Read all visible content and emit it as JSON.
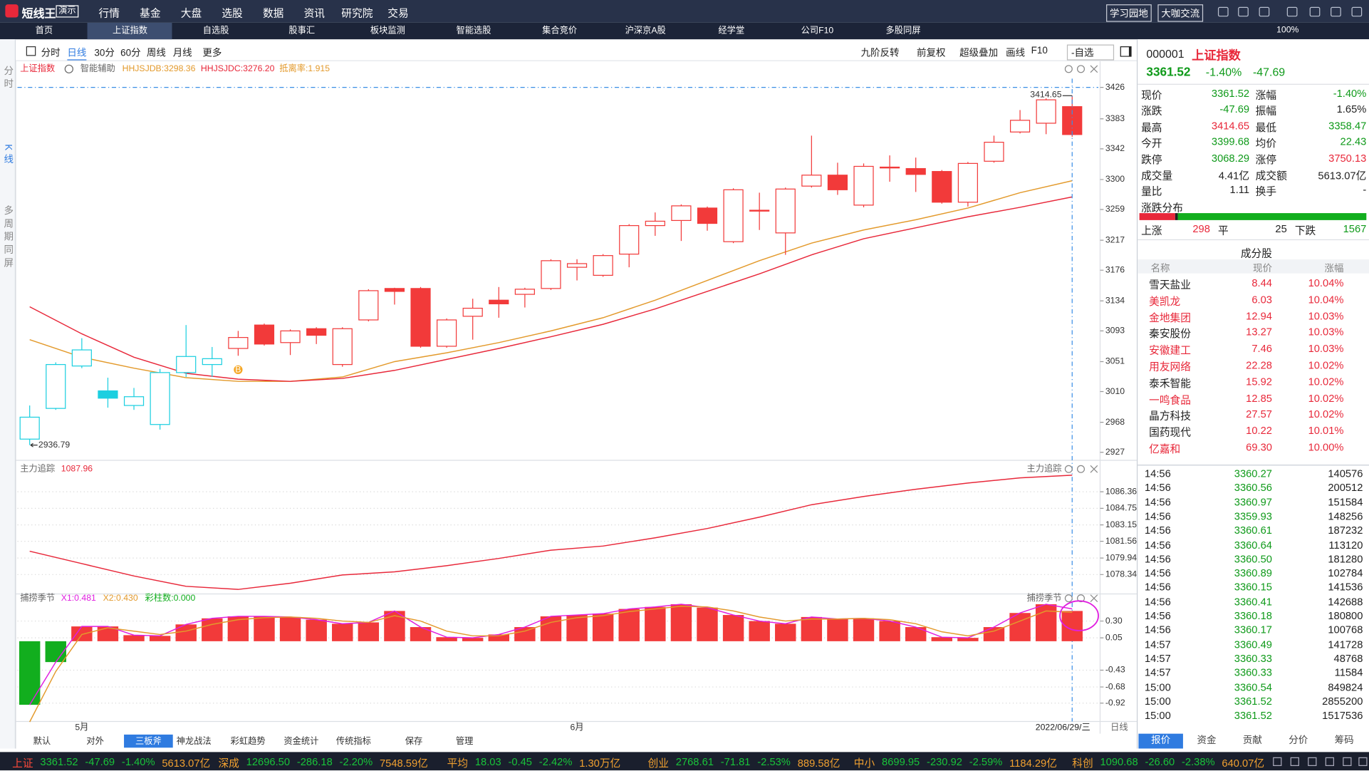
{
  "app": {
    "logo": "短线王",
    "badge": "演示",
    "menu": [
      "行情",
      "基金",
      "大盘",
      "选股",
      "数据",
      "资讯",
      "研究院",
      "交易"
    ],
    "buttons": [
      "学习园地",
      "大咖交流"
    ],
    "tabs": [
      "首页",
      "上证指数",
      "自选股",
      "股事汇",
      "板块监测",
      "智能选股",
      "集合竞价",
      "沪深京A股",
      "经学堂",
      "公司F10",
      "多股同屏"
    ],
    "zoom": "100%",
    "side_tabs": [
      "分时",
      "K线",
      "多周期同屏"
    ],
    "periods": [
      "分时",
      "日线",
      "30分",
      "60分",
      "周线",
      "月线",
      "更多"
    ],
    "tools": [
      "九阶反转",
      "前复权",
      "超级叠加",
      "画线",
      "F10",
      "-自选"
    ],
    "date": "2022/06/29/三",
    "period_label": "日线",
    "indicator_tabs": [
      "默认",
      "对外",
      "三板斧",
      "神龙战法",
      "彩虹趋势",
      "资金统计",
      "传统指标",
      "保存",
      "管理"
    ]
  },
  "chart_data": [
    {
      "type": "candlestick",
      "title": "上证指数",
      "subtitle": "智能辅助",
      "annotation": "抵离率:1.915",
      "open": [
        2945,
        2987,
        3045,
        3011,
        2991,
        2965,
        3036,
        3047,
        3069,
        3101,
        3077,
        3096,
        3047,
        3108,
        3151,
        3151,
        3072,
        3113,
        3135,
        3143,
        3151,
        3180,
        3169,
        3198,
        3237,
        3244,
        3261,
        3215,
        3257,
        3227,
        3291,
        3306,
        3265,
        3316,
        3315,
        3311,
        3269,
        3325,
        3365,
        3377,
        3399.68
      ],
      "high": [
        2991,
        3050,
        3083,
        3029,
        3015,
        3041,
        3101,
        3071,
        3093,
        3103,
        3095,
        3098,
        3098,
        3150,
        3152,
        3153,
        3110,
        3137,
        3153,
        3152,
        3191,
        3191,
        3198,
        3239,
        3255,
        3266,
        3263,
        3288,
        3282,
        3289,
        3360,
        3323,
        3322,
        3333,
        3330,
        3313,
        3324,
        3360,
        3395,
        3411,
        3414.65
      ],
      "low": [
        2936.79,
        2985,
        3042,
        2988,
        2985,
        2958,
        3030,
        3030,
        3059,
        3073,
        3060,
        3075,
        3044,
        3106,
        3129,
        3070,
        3070,
        3081,
        3111,
        3125,
        3149,
        3162,
        3167,
        3180,
        3223,
        3216,
        3230,
        3213,
        3231,
        3197,
        3289,
        3279,
        3262,
        3297,
        3283,
        3267,
        3263,
        3323,
        3363,
        3362,
        3358.47
      ],
      "close": [
        2975,
        3047,
        3067,
        3001,
        3003,
        3036,
        3058,
        3055,
        3084,
        3075,
        3093,
        3087,
        3096,
        3148,
        3147,
        3072,
        3108,
        3124,
        3130,
        3150,
        3189,
        3185,
        3196,
        3237,
        3243,
        3264,
        3240,
        3286,
        3258,
        3287,
        3306,
        3286,
        3318,
        3317,
        3307,
        3269,
        3322,
        3351,
        3381,
        3409,
        3361.52
      ],
      "colors": [
        "#1ccfe0",
        "#1ccfe0",
        "#1ccfe0",
        "#1ccfe0",
        "#1ccfe0",
        "#1ccfe0",
        "#1ccfe0",
        "#1ccfe0",
        "#f23a3a",
        "#f23a3a",
        "#f23a3a",
        "#f23a3a",
        "#f23a3a",
        "#f23a3a",
        "#f23a3a",
        "#f23a3a",
        "#f23a3a",
        "#f23a3a",
        "#f23a3a",
        "#f23a3a",
        "#f23a3a",
        "#f23a3a",
        "#f23a3a",
        "#f23a3a",
        "#f23a3a",
        "#f23a3a",
        "#f23a3a",
        "#f23a3a",
        "#f23a3a",
        "#f23a3a",
        "#f23a3a",
        "#f23a3a",
        "#f23a3a",
        "#f23a3a",
        "#f23a3a",
        "#f23a3a",
        "#f23a3a",
        "#f23a3a",
        "#f23a3a",
        "#f23a3a",
        "#f23a3a"
      ],
      "series": [
        {
          "name": "HHJSJDB:3298.36",
          "color": "#e39a2c",
          "x": [
            0,
            2,
            4,
            6,
            8,
            10,
            12,
            14,
            16,
            18,
            20,
            22,
            24,
            26,
            28,
            30,
            32,
            34,
            36,
            38,
            40
          ],
          "values": [
            3081,
            3057,
            3042,
            3029,
            3024,
            3024,
            3030,
            3051,
            3063,
            3077,
            3093,
            3111,
            3135,
            3162,
            3189,
            3213,
            3231,
            3245,
            3261,
            3282,
            3298.36
          ]
        },
        {
          "name": "HHJSJDC:3276.20",
          "color": "#e8283a",
          "x": [
            0,
            2,
            4,
            6,
            8,
            10,
            12,
            14,
            16,
            18,
            20,
            22,
            24,
            26,
            28,
            30,
            32,
            34,
            36,
            38,
            40
          ],
          "values": [
            3126,
            3089,
            3057,
            3035,
            3027,
            3024,
            3028,
            3039,
            3054,
            3069,
            3085,
            3102,
            3123,
            3147,
            3171,
            3197,
            3219,
            3234,
            3249,
            3262,
            3276.2
          ]
        }
      ],
      "high_label": "3414.65",
      "low_label": "2936.79",
      "markers": [
        {
          "index": 8,
          "label": "B"
        }
      ],
      "xticks": [
        {
          "value": 2,
          "label": "5月"
        },
        {
          "value": 21,
          "label": "6月"
        }
      ],
      "ylim": [
        2922,
        3438
      ],
      "yticks": [
        3426,
        3383,
        3342,
        3300,
        3259,
        3217,
        3176,
        3134,
        3093,
        3051,
        3010,
        2968,
        2927
      ],
      "grid": false
    },
    {
      "type": "line",
      "title": "主力追踪",
      "title_right": "主力追踪",
      "value_label": "1087.96",
      "color": "#e8283a",
      "x": [
        0,
        2,
        4,
        6,
        8,
        10,
        12,
        14,
        16,
        18,
        20,
        22,
        24,
        26,
        28,
        30,
        32,
        34,
        36,
        38,
        40
      ],
      "values": [
        1080.6,
        1079.4,
        1078.2,
        1077.2,
        1076.9,
        1077.5,
        1078.3,
        1078.6,
        1079.2,
        1079.9,
        1080.7,
        1081.1,
        1081.9,
        1082.8,
        1083.9,
        1085.1,
        1085.9,
        1086.6,
        1087.2,
        1087.7,
        1087.96
      ],
      "ylim": [
        1076.8,
        1089.15
      ],
      "yticks": [
        1086.36,
        1084.75,
        1083.15,
        1081.56,
        1079.94,
        1078.34
      ],
      "grid": true
    },
    {
      "type": "bar",
      "title": "捕捞季节",
      "title_right": "捕捞季节",
      "bar_label": "彩柱数:0.000",
      "color": "#f23a3a",
      "negative_color": "#12ae1e",
      "values": [
        -0.945,
        -0.31,
        0.22,
        0.22,
        0.09,
        0.08,
        0.25,
        0.34,
        0.37,
        0.37,
        0.36,
        0.32,
        0.26,
        0.28,
        0.45,
        0.21,
        0.06,
        0.05,
        0.1,
        0.21,
        0.37,
        0.39,
        0.41,
        0.48,
        0.51,
        0.55,
        0.5,
        0.39,
        0.3,
        0.26,
        0.36,
        0.33,
        0.34,
        0.3,
        0.21,
        0.06,
        0.05,
        0.21,
        0.42,
        0.55,
        0.45
      ],
      "series": [
        {
          "name": "X1:0.481",
          "color": "#e01ee0",
          "values": [
            -0.945,
            -0.31,
            0.22,
            0.22,
            0.09,
            0.08,
            0.25,
            0.34,
            0.37,
            0.37,
            0.36,
            0.32,
            0.26,
            0.28,
            0.45,
            0.21,
            0.06,
            0.05,
            0.1,
            0.21,
            0.37,
            0.39,
            0.41,
            0.48,
            0.51,
            0.55,
            0.5,
            0.39,
            0.3,
            0.26,
            0.36,
            0.33,
            0.34,
            0.3,
            0.21,
            0.06,
            0.05,
            0.21,
            0.42,
            0.55,
            0.481
          ]
        },
        {
          "name": "X2:0.430",
          "color": "#e39a2c",
          "values": [
            -1.2,
            -0.45,
            0.1,
            0.2,
            0.15,
            0.1,
            0.15,
            0.25,
            0.32,
            0.35,
            0.36,
            0.34,
            0.3,
            0.28,
            0.38,
            0.3,
            0.15,
            0.08,
            0.08,
            0.15,
            0.28,
            0.35,
            0.38,
            0.44,
            0.48,
            0.52,
            0.51,
            0.45,
            0.36,
            0.3,
            0.33,
            0.33,
            0.34,
            0.32,
            0.26,
            0.14,
            0.08,
            0.15,
            0.3,
            0.45,
            0.43
          ]
        }
      ],
      "ylim": [
        -1.245,
        0.573
      ],
      "yticks": [
        {
          "value": 0.3,
          "label": "0.30"
        },
        0.05,
        -0.43,
        -0.68,
        -0.92
      ],
      "grid": true
    }
  ],
  "quote": {
    "code": "000001",
    "name": "上证指数",
    "price": "3361.52",
    "pct": "-1.40%",
    "chg": "-47.69",
    "rows": [
      [
        "现价",
        "3361.52",
        "涨幅",
        "-1.40%"
      ],
      [
        "涨跌",
        "-47.69",
        "振幅",
        "1.65%"
      ],
      [
        "最高",
        "3414.65",
        "最低",
        "3358.47"
      ],
      [
        "今开",
        "3399.68",
        "均价",
        "22.43"
      ],
      [
        "跌停",
        "3068.29",
        "涨停",
        "3750.13"
      ],
      [
        "成交量",
        "4.41亿",
        "成交额",
        "5613.07亿"
      ],
      [
        "量比",
        "1.11",
        "换手",
        "-"
      ]
    ],
    "colors": [
      [
        "#0f9a1a",
        "#0f9a1a"
      ],
      [
        "#0f9a1a",
        "#222222"
      ],
      [
        "#e8283a",
        "#0f9a1a"
      ],
      [
        "#0f9a1a",
        "#0f9a1a"
      ],
      [
        "#0f9a1a",
        "#e8283a"
      ],
      [
        "#222222",
        "#222222"
      ],
      [
        "#222222",
        "#222222"
      ]
    ]
  },
  "distribution": {
    "title": "涨跌分布",
    "up_label": "上涨",
    "up": 298,
    "flat_label": "平",
    "flat": 25,
    "down_label": "下跌",
    "down": 1567
  },
  "constituents": {
    "title": "成分股",
    "header": [
      "名称",
      "现价",
      "涨幅"
    ],
    "rows": [
      [
        "雪天盐业",
        "8.44",
        "10.04%",
        "#222222"
      ],
      [
        "美凯龙",
        "6.03",
        "10.04%",
        "#e8283a"
      ],
      [
        "金地集团",
        "12.94",
        "10.03%",
        "#e8283a"
      ],
      [
        "秦安股份",
        "13.27",
        "10.03%",
        "#222222"
      ],
      [
        "安徽建工",
        "7.46",
        "10.03%",
        "#e8283a"
      ],
      [
        "用友网络",
        "22.28",
        "10.02%",
        "#e8283a"
      ],
      [
        "泰禾智能",
        "15.92",
        "10.02%",
        "#222222"
      ],
      [
        "一鸣食品",
        "12.85",
        "10.02%",
        "#e8283a"
      ],
      [
        "晶方科技",
        "27.57",
        "10.02%",
        "#222222"
      ],
      [
        "国药现代",
        "10.22",
        "10.01%",
        "#222222"
      ],
      [
        "亿嘉和",
        "69.30",
        "10.00%",
        "#e8283a"
      ]
    ]
  },
  "trades": [
    [
      "14:56",
      "3360.27",
      "140576"
    ],
    [
      "14:56",
      "3360.56",
      "200512"
    ],
    [
      "14:56",
      "3360.97",
      "151584"
    ],
    [
      "14:56",
      "3359.93",
      "148256"
    ],
    [
      "14:56",
      "3360.61",
      "187232"
    ],
    [
      "14:56",
      "3360.64",
      "113120"
    ],
    [
      "14:56",
      "3360.50",
      "181280"
    ],
    [
      "14:56",
      "3360.89",
      "102784"
    ],
    [
      "14:56",
      "3360.15",
      "141536"
    ],
    [
      "14:56",
      "3360.41",
      "142688"
    ],
    [
      "14:56",
      "3360.18",
      "180800"
    ],
    [
      "14:56",
      "3360.17",
      "100768"
    ],
    [
      "14:57",
      "3360.49",
      "141728"
    ],
    [
      "14:57",
      "3360.33",
      "48768"
    ],
    [
      "14:57",
      "3360.33",
      "11584"
    ],
    [
      "15:00",
      "3360.54",
      "849824"
    ],
    [
      "15:00",
      "3361.52",
      "2855200"
    ],
    [
      "15:00",
      "3361.52",
      "1517536"
    ]
  ],
  "panel_tabs": [
    "报价",
    "资金",
    "贡献",
    "分价",
    "筹码"
  ],
  "ticker": [
    {
      "label": "上证",
      "values": [
        "3361.52",
        "-47.69",
        "-1.40%",
        "5613.07亿"
      ]
    },
    {
      "label": "深成",
      "values": [
        "12696.50",
        "-286.18",
        "-2.20%",
        "7548.59亿"
      ]
    },
    {
      "label": "平均",
      "values": [
        "18.03",
        "-0.45",
        "-2.42%",
        "1.30万亿"
      ]
    },
    {
      "label": "创业",
      "values": [
        "2768.61",
        "-71.81",
        "-2.53%",
        "889.58亿"
      ]
    },
    {
      "label": "中小",
      "values": [
        "8699.95",
        "-230.92",
        "-2.59%",
        "1184.29亿"
      ]
    },
    {
      "label": "科创",
      "values": [
        "1090.68",
        "-26.60",
        "-2.38%",
        "640.07亿"
      ]
    }
  ]
}
